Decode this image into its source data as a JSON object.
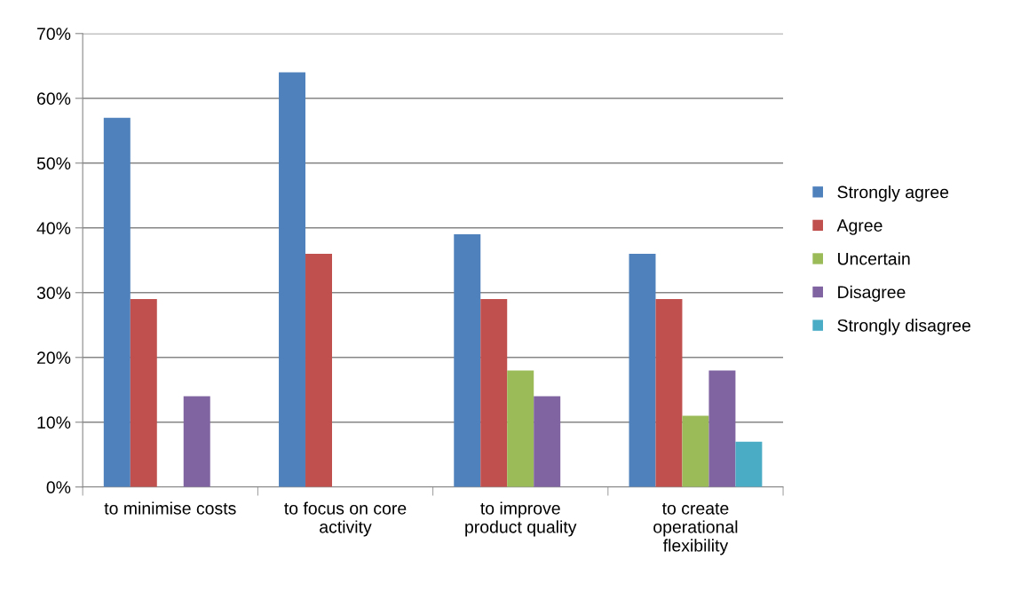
{
  "chart_data": {
    "type": "bar",
    "categories": [
      "to minimise costs",
      "to focus on core\nactivity",
      "to improve\nproduct quality",
      "to create\noperational\nflexibility"
    ],
    "series": [
      {
        "name": "Strongly agree",
        "color": "#4f81bd",
        "values": [
          57,
          64,
          39,
          36
        ]
      },
      {
        "name": "Agree",
        "color": "#c0504d",
        "values": [
          29,
          36,
          29,
          29
        ]
      },
      {
        "name": "Uncertain",
        "color": "#9bbb59",
        "values": [
          null,
          null,
          18,
          11
        ]
      },
      {
        "name": "Disagree",
        "color": "#8064a2",
        "values": [
          14,
          null,
          14,
          18
        ]
      },
      {
        "name": "Strongly disagree",
        "color": "#4bacc6",
        "values": [
          null,
          null,
          null,
          7
        ]
      }
    ],
    "ylim": [
      0,
      70
    ],
    "yticks": [
      {
        "value": 0,
        "label": "0%"
      },
      {
        "value": 10,
        "label": "10%"
      },
      {
        "value": 20,
        "label": "20%"
      },
      {
        "value": 30,
        "label": "30%"
      },
      {
        "value": 40,
        "label": "40%"
      },
      {
        "value": 50,
        "label": "50%"
      },
      {
        "value": 60,
        "label": "60%"
      },
      {
        "value": 70,
        "label": "70%"
      }
    ],
    "grid": "y",
    "legend": "right"
  }
}
